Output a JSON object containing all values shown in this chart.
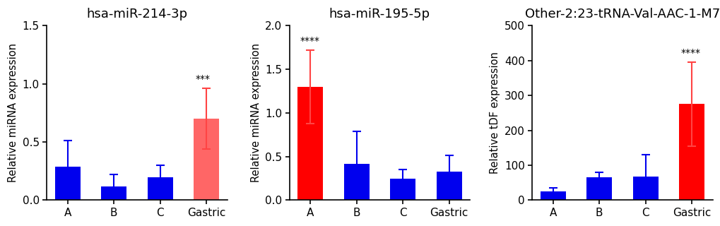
{
  "charts": [
    {
      "title": "hsa-miR-214-3p",
      "ylabel": "Relative miRNA expression",
      "categories": [
        "A",
        "B",
        "C",
        "Gastric"
      ],
      "values": [
        0.29,
        0.12,
        0.2,
        0.7
      ],
      "errors": [
        0.22,
        0.1,
        0.1,
        0.26
      ],
      "bar_colors": [
        "#0000EE",
        "#0000EE",
        "#0000EE",
        "#FF6666"
      ],
      "err_colors": [
        "#0000EE",
        "#0000EE",
        "#0000EE",
        "#FF4444"
      ],
      "ylim": [
        0,
        1.5
      ],
      "yticks": [
        0.0,
        0.5,
        1.0,
        1.5
      ],
      "ytick_labels": [
        "0.0",
        "0.5",
        "1.0",
        "1.5"
      ],
      "sig_bar": 3,
      "sig_label": "***"
    },
    {
      "title": "hsa-miR-195-5p",
      "ylabel": "Relative miRNA expression",
      "categories": [
        "A",
        "B",
        "C",
        "Gastric"
      ],
      "values": [
        1.3,
        0.42,
        0.25,
        0.33
      ],
      "errors": [
        0.42,
        0.37,
        0.1,
        0.18
      ],
      "bar_colors": [
        "#FF0000",
        "#0000EE",
        "#0000EE",
        "#0000EE"
      ],
      "err_colors": [
        "#FF4444",
        "#0000EE",
        "#0000EE",
        "#0000EE"
      ],
      "ylim": [
        0,
        2.0
      ],
      "yticks": [
        0.0,
        0.5,
        1.0,
        1.5,
        2.0
      ],
      "ytick_labels": [
        "0.0",
        "0.5",
        "1.0",
        "1.5",
        "2.0"
      ],
      "sig_bar": 0,
      "sig_label": "****"
    },
    {
      "title": "Other-2:23-tRNA-Val-AAC-1-M7",
      "ylabel": "Relative tDF expression",
      "categories": [
        "A",
        "B",
        "C",
        "Gastric"
      ],
      "values": [
        25,
        65,
        68,
        275
      ],
      "errors": [
        10,
        15,
        62,
        120
      ],
      "bar_colors": [
        "#0000EE",
        "#0000EE",
        "#0000EE",
        "#FF0000"
      ],
      "err_colors": [
        "#0000EE",
        "#0000EE",
        "#0000EE",
        "#FF4444"
      ],
      "ylim": [
        0,
        500
      ],
      "yticks": [
        0,
        100,
        200,
        300,
        400,
        500
      ],
      "ytick_labels": [
        "0",
        "100",
        "200",
        "300",
        "400",
        "500"
      ],
      "sig_bar": 3,
      "sig_label": "****"
    }
  ],
  "background_color": "#FFFFFF",
  "bar_width": 0.55,
  "title_fontsize": 13,
  "label_fontsize": 10.5,
  "tick_fontsize": 11,
  "sig_fontsize": 10,
  "capsize": 4,
  "capthick": 1.5,
  "elinewidth": 1.5
}
